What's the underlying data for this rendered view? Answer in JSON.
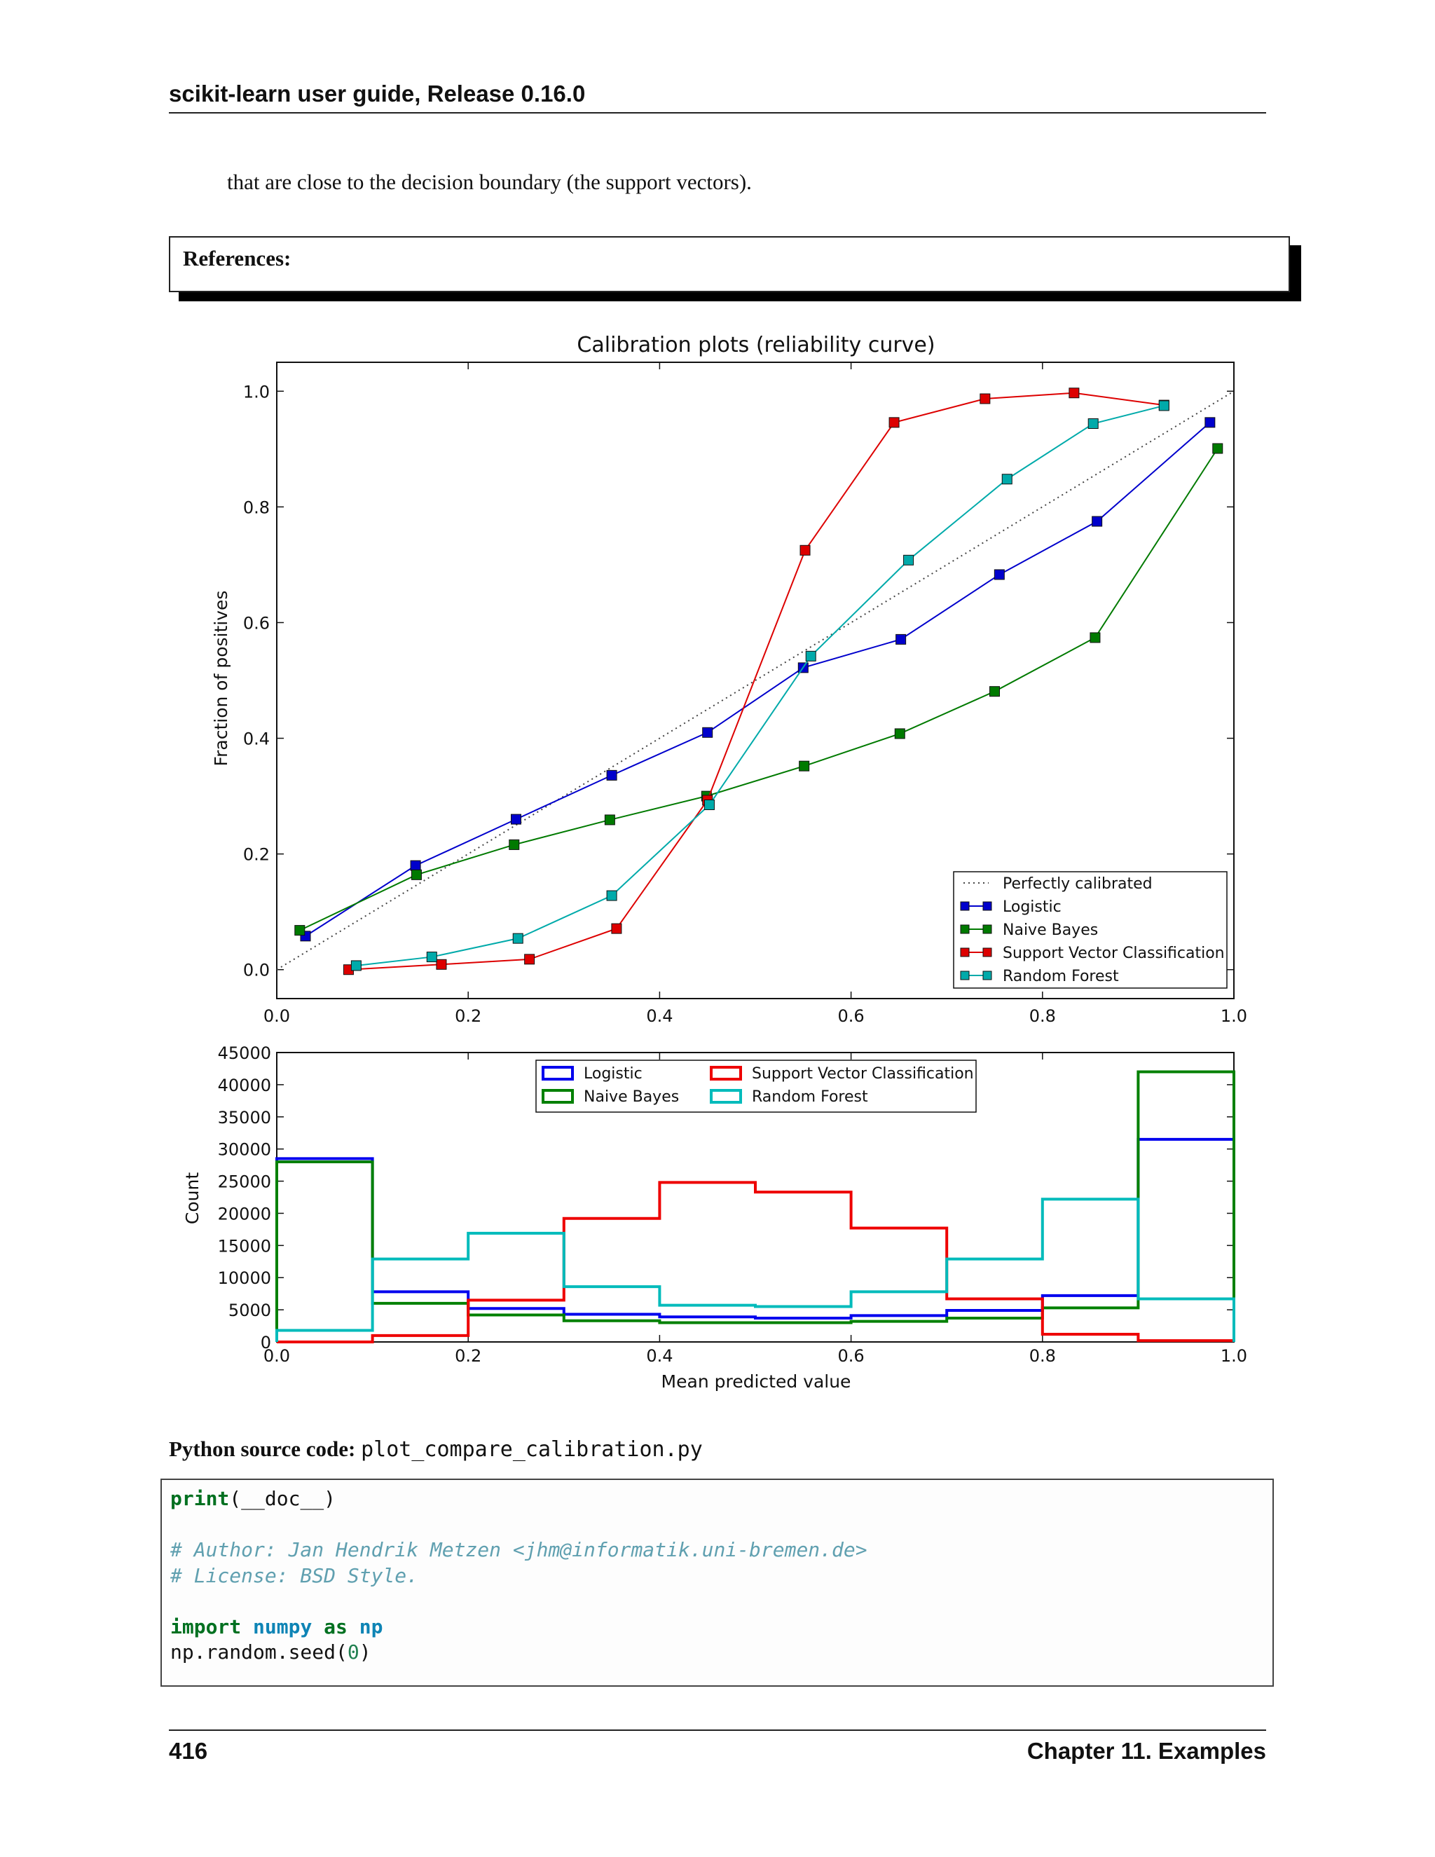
{
  "header": {
    "title": "scikit-learn user guide, Release 0.16.0"
  },
  "intro_text": "that are close to the decision boundary (the support vectors).",
  "references": {
    "label": "References:"
  },
  "source": {
    "label": "Python source code:",
    "filename": "plot_compare_calibration.py"
  },
  "code_lines": [
    [
      {
        "t": "print",
        "c": "kw"
      },
      {
        "t": "(__doc__)",
        "c": ""
      }
    ],
    [],
    [
      {
        "t": "# Author: Jan Hendrik Metzen <jhm@informatik.uni-bremen.de>",
        "c": "cm"
      }
    ],
    [
      {
        "t": "# License: BSD Style.",
        "c": "cm"
      }
    ],
    [],
    [
      {
        "t": "import",
        "c": "kw"
      },
      {
        "t": " ",
        "c": ""
      },
      {
        "t": "numpy",
        "c": "mod"
      },
      {
        "t": " ",
        "c": ""
      },
      {
        "t": "as",
        "c": "kw"
      },
      {
        "t": " ",
        "c": ""
      },
      {
        "t": "np",
        "c": "mod"
      }
    ],
    [
      {
        "t": "np.random.seed(",
        "c": ""
      },
      {
        "t": "0",
        "c": "num"
      },
      {
        "t": ")",
        "c": ""
      }
    ]
  ],
  "footer": {
    "page": "416",
    "chapter": "Chapter 11.  Examples"
  },
  "chart_data": [
    {
      "type": "line",
      "title": "Calibration plots  (reliability curve)",
      "xlabel": "",
      "ylabel": "Fraction of positives",
      "xlim": [
        0.0,
        1.0
      ],
      "ylim": [
        -0.05,
        1.05
      ],
      "xticks": [
        "0.0",
        "0.2",
        "0.4",
        "0.6",
        "0.8",
        "1.0"
      ],
      "yticks": [
        "0.0",
        "0.2",
        "0.4",
        "0.6",
        "0.8",
        "1.0"
      ],
      "grid": false,
      "legend_position": "lower-right",
      "reference": {
        "name": "Perfectly calibrated",
        "x": [
          0,
          1
        ],
        "y": [
          0,
          1
        ],
        "color": "#444444"
      },
      "series": [
        {
          "name": "Logistic",
          "color": "#0000cc",
          "x": [
            0.03,
            0.145,
            0.25,
            0.35,
            0.45,
            0.55,
            0.652,
            0.755,
            0.857,
            0.975
          ],
          "y": [
            0.058,
            0.18,
            0.26,
            0.336,
            0.41,
            0.522,
            0.571,
            0.683,
            0.775,
            0.946
          ]
        },
        {
          "name": "Naive Bayes",
          "color": "#007a00",
          "x": [
            0.024,
            0.146,
            0.248,
            0.348,
            0.449,
            0.551,
            0.651,
            0.75,
            0.855,
            0.983
          ],
          "y": [
            0.068,
            0.164,
            0.216,
            0.259,
            0.3,
            0.352,
            0.408,
            0.481,
            0.574,
            0.901
          ]
        },
        {
          "name": "Support Vector Classification",
          "color": "#dd0000",
          "x": [
            0.075,
            0.172,
            0.264,
            0.355,
            0.45,
            0.552,
            0.645,
            0.74,
            0.833,
            0.927
          ],
          "y": [
            0.0,
            0.009,
            0.018,
            0.071,
            0.293,
            0.725,
            0.946,
            0.987,
            0.997,
            0.976
          ]
        },
        {
          "name": "Random Forest",
          "color": "#00aaaa",
          "x": [
            0.083,
            0.162,
            0.252,
            0.35,
            0.452,
            0.558,
            0.66,
            0.763,
            0.853,
            0.927
          ],
          "y": [
            0.007,
            0.022,
            0.054,
            0.128,
            0.285,
            0.542,
            0.708,
            0.848,
            0.944,
            0.975
          ]
        }
      ]
    },
    {
      "type": "histogram",
      "xlabel": "Mean predicted value",
      "ylabel": "Count",
      "xlim": [
        0.0,
        1.0
      ],
      "ylim": [
        0,
        45000
      ],
      "xticks": [
        "0.0",
        "0.2",
        "0.4",
        "0.6",
        "0.8",
        "1.0"
      ],
      "yticks": [
        "0",
        "5000",
        "10000",
        "15000",
        "20000",
        "25000",
        "30000",
        "35000",
        "40000",
        "45000"
      ],
      "bins": [
        0.0,
        0.1,
        0.2,
        0.3,
        0.4,
        0.5,
        0.6,
        0.7,
        0.8,
        0.9,
        1.0
      ],
      "legend_position": "top-center",
      "series": [
        {
          "name": "Logistic",
          "color": "#0000ee",
          "values": [
            28500,
            7800,
            5200,
            4300,
            3900,
            3700,
            4100,
            4900,
            7200,
            31500
          ]
        },
        {
          "name": "Naive Bayes",
          "color": "#008000",
          "values": [
            28000,
            6000,
            4200,
            3300,
            3000,
            3000,
            3200,
            3700,
            5300,
            42000
          ]
        },
        {
          "name": "Support Vector Classification",
          "color": "#ee0000",
          "values": [
            0,
            1000,
            6500,
            19200,
            24800,
            23300,
            17700,
            6700,
            1200,
            200
          ]
        },
        {
          "name": "Random Forest",
          "color": "#00bbbb",
          "values": [
            1800,
            12900,
            16900,
            8600,
            5700,
            5500,
            7800,
            12900,
            22200,
            6700
          ]
        }
      ]
    }
  ]
}
